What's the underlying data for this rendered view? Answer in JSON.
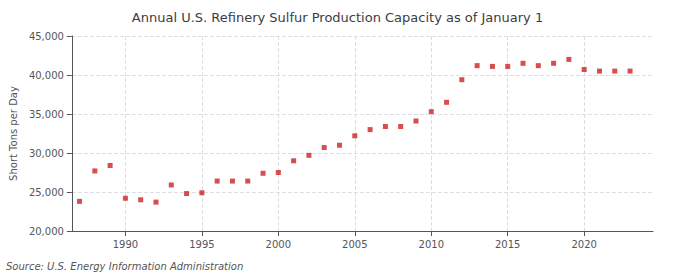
{
  "chart_data": {
    "type": "scatter",
    "title": "Annual U.S. Refinery Sulfur Production Capacity as of January 1",
    "ylabel": "Short Tons per Day",
    "annotation": "Source: U.S. Energy Information Administration",
    "color": "#cc2222",
    "marker": "square",
    "grid": true,
    "x": [
      1987,
      1988,
      1989,
      1990,
      1991,
      1992,
      1993,
      1994,
      1995,
      1996,
      1997,
      1998,
      1999,
      2000,
      2001,
      2002,
      2003,
      2004,
      2005,
      2006,
      2007,
      2008,
      2009,
      2010,
      2011,
      2012,
      2013,
      2014,
      2015,
      2016,
      2017,
      2018,
      2019,
      2020,
      2021,
      2022,
      2023
    ],
    "values": [
      23800,
      27700,
      28400,
      24200,
      24000,
      23700,
      25900,
      24800,
      24900,
      26400,
      26400,
      26400,
      27400,
      27500,
      29000,
      29700,
      30700,
      31000,
      32200,
      33000,
      33400,
      33400,
      34100,
      35300,
      36500,
      39400,
      41200,
      41100,
      41100,
      41500,
      41200,
      41500,
      42000,
      40700,
      40500,
      40500,
      40500
    ],
    "xlim": [
      1986.5,
      2024.5
    ],
    "xticks": [
      1990,
      1995,
      2000,
      2005,
      2010,
      2015,
      2020
    ],
    "ylim": [
      20000,
      45000
    ],
    "yticks": [
      {
        "value": 20000,
        "label": "20,000"
      },
      {
        "value": 25000,
        "label": "25,000"
      },
      {
        "value": 30000,
        "label": "30,000"
      },
      {
        "value": 35000,
        "label": "35,000"
      },
      {
        "value": 40000,
        "label": "40,000"
      },
      {
        "value": 45000,
        "label": "45,000"
      }
    ]
  }
}
